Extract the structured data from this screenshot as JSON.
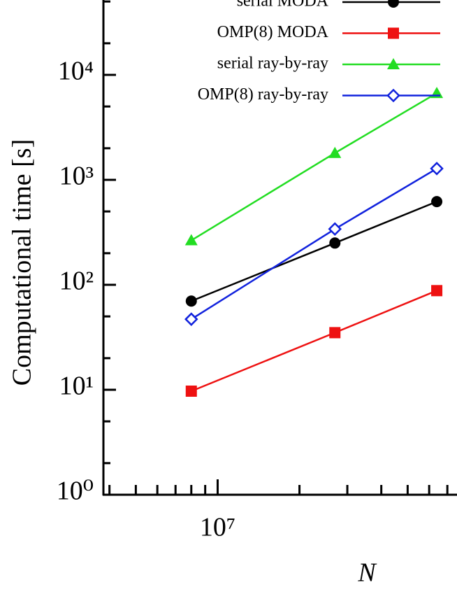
{
  "chart_data": {
    "type": "line",
    "xlabel": "N",
    "ylabel": "Computational time [s]",
    "x": [
      8000000,
      27000000,
      64000000
    ],
    "series": [
      {
        "name": "serial MODA",
        "color": "#000000",
        "marker": "circle",
        "values": [
          70,
          250,
          620
        ]
      },
      {
        "name": "OMP(8) MODA",
        "color": "#ee1111",
        "marker": "square",
        "values": [
          9.7,
          35,
          88
        ]
      },
      {
        "name": "serial ray-by-ray",
        "color": "#22dd22",
        "marker": "triangle",
        "values": [
          265,
          1800,
          6700
        ]
      },
      {
        "name": "OMP(8) ray-by-ray",
        "color": "#1122dd",
        "marker": "diamond-open",
        "values": [
          47,
          340,
          1280
        ]
      }
    ],
    "xscale": "log",
    "yscale": "log",
    "xlim": [
      3800000,
      100000000
    ],
    "ylim": [
      1,
      100000
    ],
    "xticks": [
      {
        "value": 10000000,
        "label": "10⁷"
      }
    ],
    "xticks_minor": [
      4000000,
      5000000,
      6000000,
      7000000,
      8000000,
      9000000,
      20000000,
      30000000,
      40000000,
      50000000,
      60000000,
      70000000
    ],
    "yticks": [
      {
        "value": 1,
        "label": "10⁰"
      },
      {
        "value": 10,
        "label": "10¹"
      },
      {
        "value": 100,
        "label": "10²"
      },
      {
        "value": 1000,
        "label": "10³"
      },
      {
        "value": 10000,
        "label": "10⁴"
      }
    ],
    "yticks_minor": [
      2,
      5,
      20,
      50,
      200,
      500,
      2000,
      5000,
      20000,
      50000
    ],
    "legend": "upper right"
  }
}
